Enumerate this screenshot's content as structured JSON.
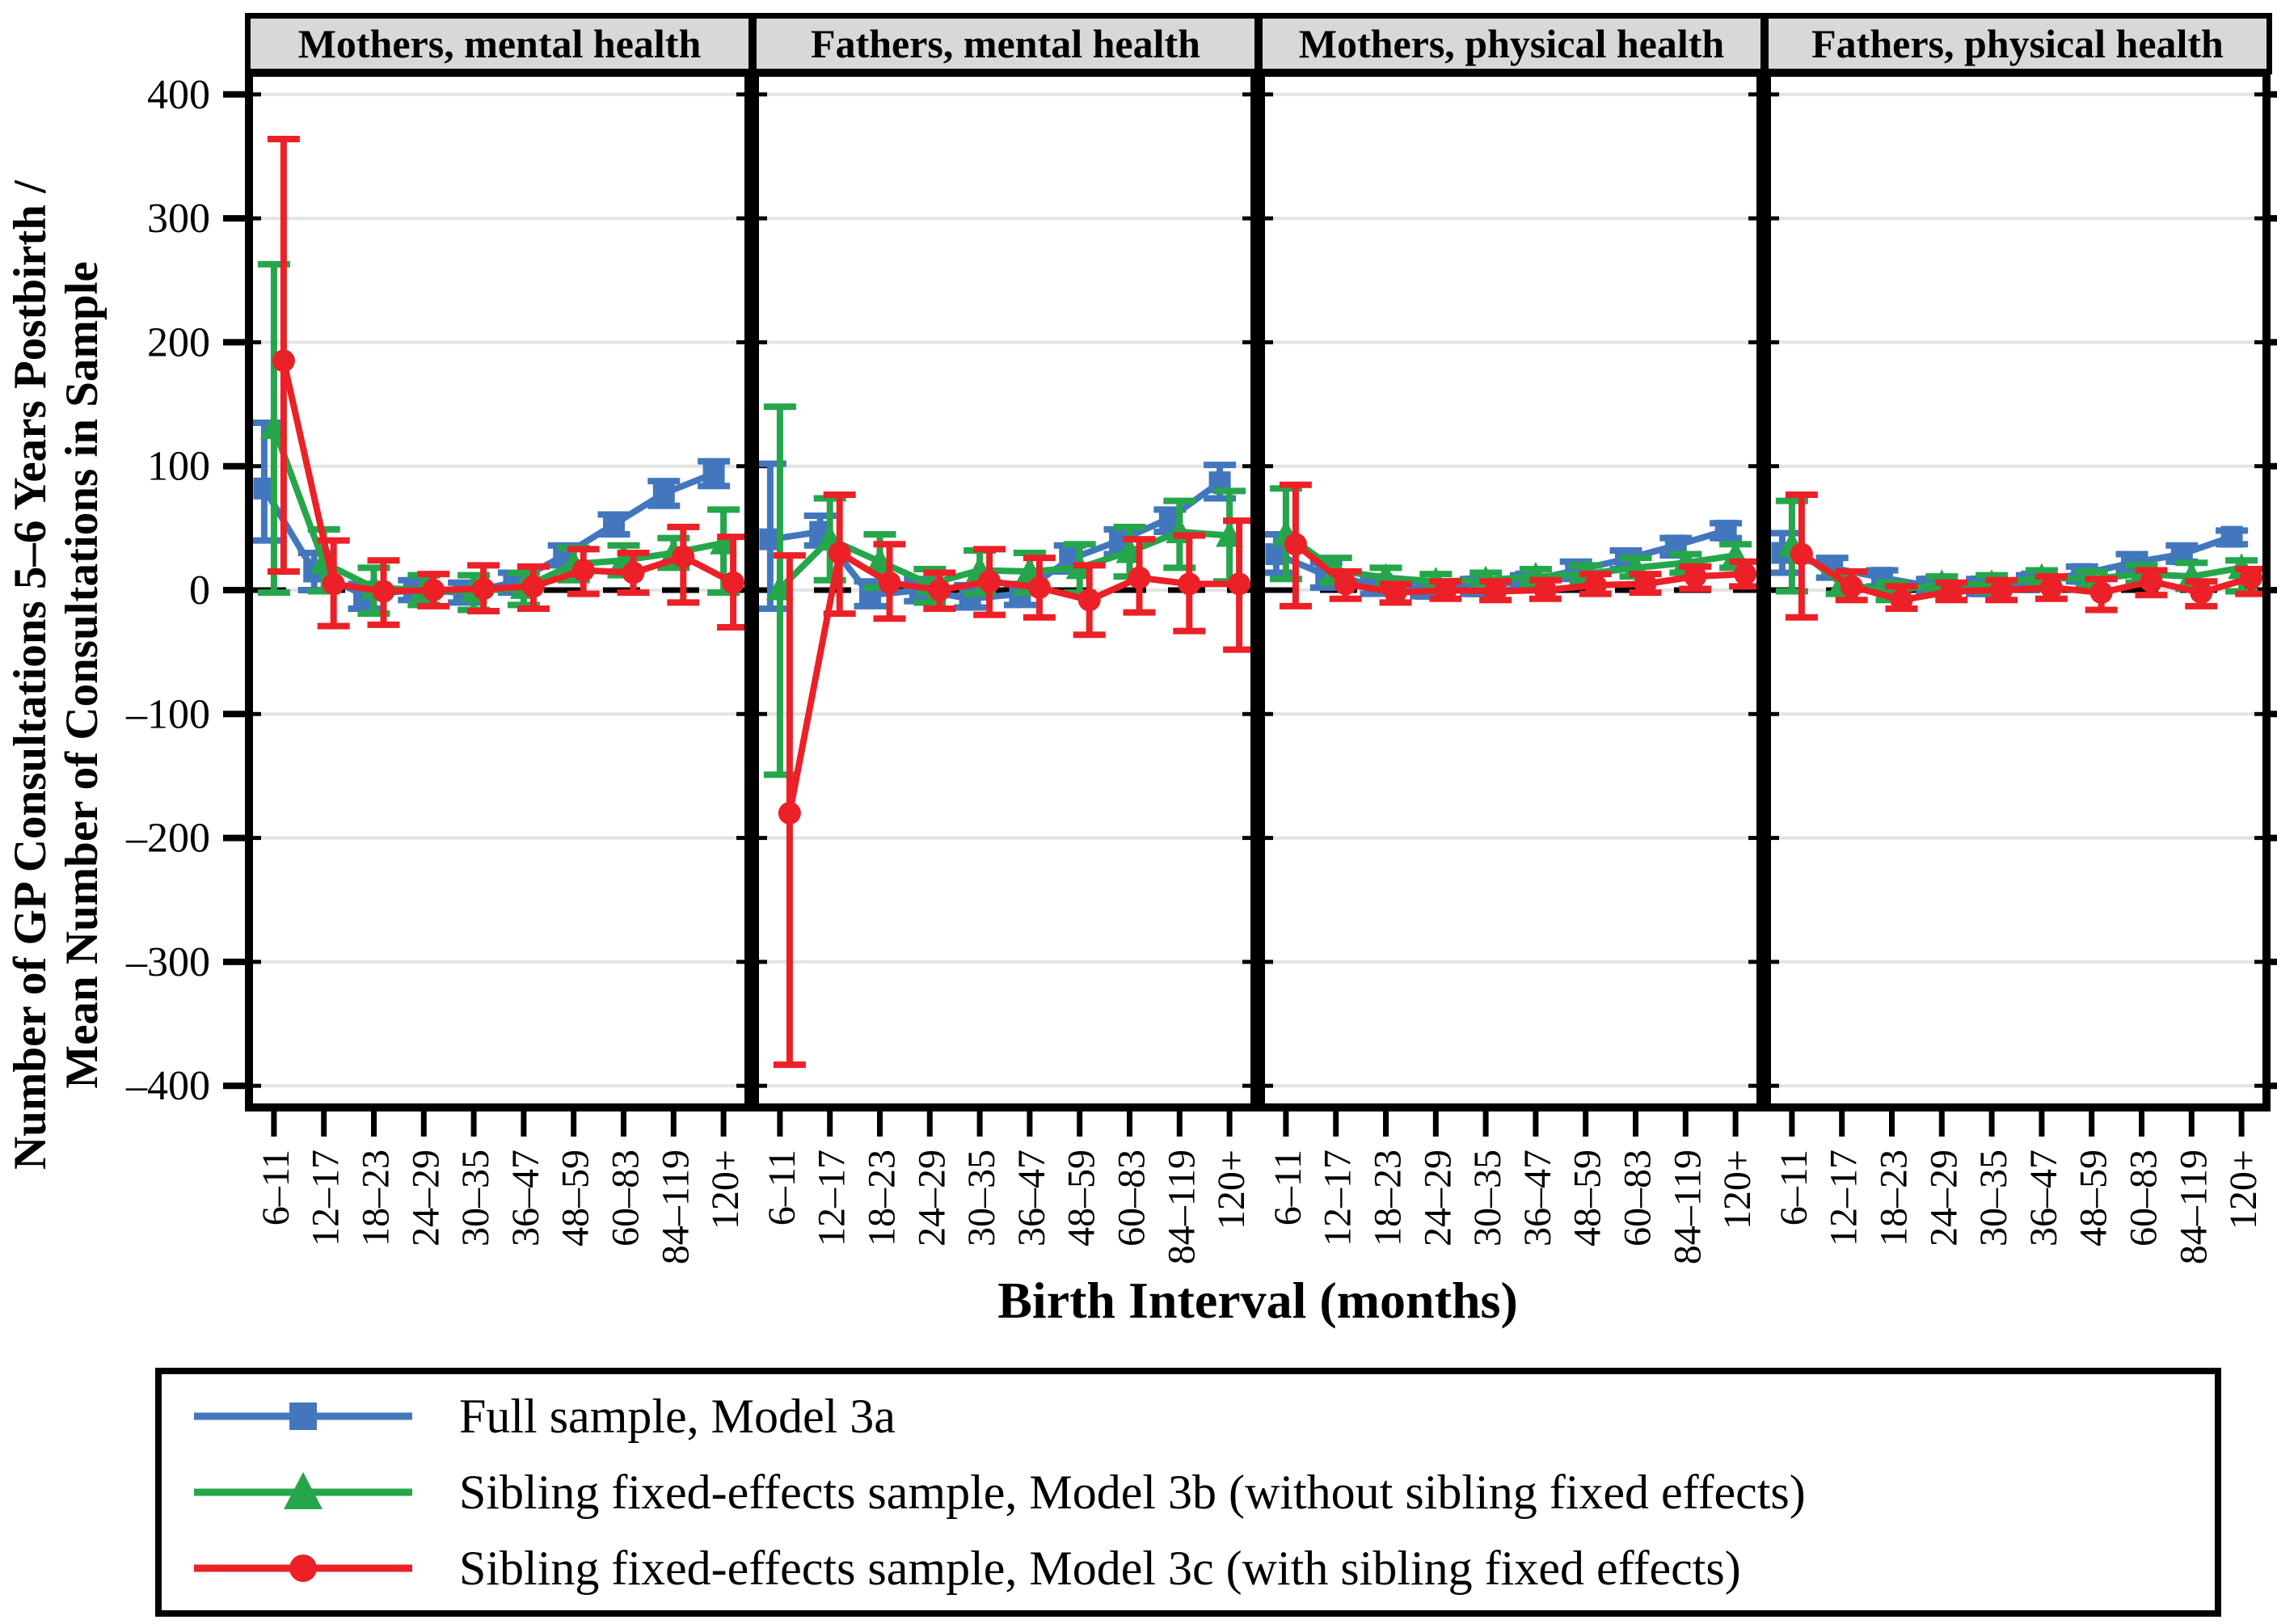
{
  "chart_data": {
    "type": "line",
    "title": "",
    "xlabel": "Birth Interval (months)",
    "ylabel_line1": "Number of GP Consultations 5–6 Years Postbirth /",
    "ylabel_line2": "Mean Number of Consultations in Sample",
    "legend_position": "bottom",
    "grid": "horizontal",
    "ylim": [
      -420,
      418
    ],
    "y_gridlines": [
      400,
      300,
      200,
      100,
      0,
      -100,
      -200,
      -300,
      -400
    ],
    "y_tick_labels": [
      "400",
      "300",
      "200",
      "100",
      "0",
      "–100",
      "–200",
      "–300",
      "–400"
    ],
    "categories": [
      "6–11",
      "12–17",
      "18–23",
      "24–29",
      "30–35",
      "36–47",
      "48–59",
      "60–83",
      "84–119",
      "120+"
    ],
    "series_meta": [
      {
        "key": "model3a",
        "label": "Full sample, Model 3a",
        "color": "#4277bd",
        "marker": "square"
      },
      {
        "key": "model3b",
        "label": "Sibling fixed-effects sample, Model 3b (without sibling fixed effects)",
        "color": "#26a64b",
        "marker": "triangle"
      },
      {
        "key": "model3c",
        "label": "Sibling fixed-effects sample, Model 3c (with sibling fixed effects)",
        "color": "#ec2027",
        "marker": "circle"
      }
    ],
    "point_format": "[estimate, ci_low, ci_high]",
    "panels": [
      {
        "id": "mothers-mental-health",
        "title": "Mothers, mental health",
        "series": [
          {
            "key": "model3a",
            "points": [
              [
                82,
                40,
                135
              ],
              [
                15,
                0,
                30
              ],
              [
                -4,
                -15,
                5
              ],
              [
                0,
                -8,
                8
              ],
              [
                -2,
                -10,
                6
              ],
              [
                6,
                -2,
                14
              ],
              [
                28,
                20,
                36
              ],
              [
                53,
                45,
                61
              ],
              [
                78,
                68,
                88
              ],
              [
                94,
                84,
                104
              ]
            ]
          },
          {
            "key": "model3b",
            "points": [
              [
                131,
                -2,
                263
              ],
              [
                22,
                -1,
                49
              ],
              [
                2,
                -19,
                18
              ],
              [
                0,
                -12,
                12
              ],
              [
                -1,
                -16,
                12
              ],
              [
                2,
                -12,
                14
              ],
              [
                21,
                8,
                34
              ],
              [
                24,
                12,
                36
              ],
              [
                30,
                18,
                42
              ],
              [
                38,
                -2,
                65
              ]
            ]
          },
          {
            "key": "model3c",
            "points": [
              [
                185,
                15,
                364
              ],
              [
                5,
                -29,
                40
              ],
              [
                -1,
                -28,
                24
              ],
              [
                0,
                -13,
                13
              ],
              [
                1,
                -17,
                20
              ],
              [
                3,
                -15,
                19
              ],
              [
                16,
                -3,
                33
              ],
              [
                14,
                -2,
                30
              ],
              [
                27,
                -10,
                51
              ],
              [
                6,
                -30,
                43
              ]
            ]
          }
        ]
      },
      {
        "id": "fathers-mental-health",
        "title": "Fathers, mental health",
        "series": [
          {
            "key": "model3a",
            "points": [
              [
                41,
                -15,
                102
              ],
              [
                47,
                36,
                60
              ],
              [
                -4,
                -13,
                7
              ],
              [
                0,
                -9,
                9
              ],
              [
                -7,
                -14,
                4
              ],
              [
                -3,
                -12,
                5
              ],
              [
                25,
                15,
                36
              ],
              [
                40,
                29,
                49
              ],
              [
                58,
                47,
                65
              ],
              [
                87,
                74,
                101
              ]
            ]
          },
          {
            "key": "model3b",
            "points": [
              [
                1,
                -149,
                148
              ],
              [
                41,
                8,
                74
              ],
              [
                23,
                2,
                45
              ],
              [
                5,
                -10,
                17
              ],
              [
                16,
                -3,
                32
              ],
              [
                15,
                -2,
                30
              ],
              [
                18,
                -2,
                37
              ],
              [
                31,
                11,
                51
              ],
              [
                47,
                18,
                72
              ],
              [
                44,
                7,
                80
              ]
            ]
          },
          {
            "key": "model3c",
            "points": [
              [
                -180,
                -383,
                28
              ],
              [
                30,
                -19,
                77
              ],
              [
                6,
                -23,
                37
              ],
              [
                0,
                -15,
                14
              ],
              [
                7,
                -20,
                33
              ],
              [
                2,
                -22,
                26
              ],
              [
                -8,
                -36,
                20
              ],
              [
                10,
                -18,
                41
              ],
              [
                5,
                -33,
                44
              ],
              [
                5,
                -48,
                56
              ]
            ]
          }
        ]
      },
      {
        "id": "mothers-physical-health",
        "title": "Mothers, physical health",
        "series": [
          {
            "key": "model3a",
            "points": [
              [
                29,
                14,
                45
              ],
              [
                12,
                2,
                22
              ],
              [
                4,
                -3,
                11
              ],
              [
                1,
                -5,
                7
              ],
              [
                3,
                -3,
                9
              ],
              [
                7,
                1,
                12
              ],
              [
                16,
                9,
                23
              ],
              [
                25,
                17,
                32
              ],
              [
                36,
                28,
                42
              ],
              [
                48,
                42,
                54
              ]
            ]
          },
          {
            "key": "model3b",
            "points": [
              [
                45,
                9,
                82
              ],
              [
                16,
                6,
                26
              ],
              [
                10,
                1,
                18
              ],
              [
                7,
                0,
                13
              ],
              [
                8,
                1,
                14
              ],
              [
                11,
                4,
                17
              ],
              [
                13,
                6,
                20
              ],
              [
                18,
                11,
                26
              ],
              [
                22,
                14,
                29
              ],
              [
                28,
                18,
                37
              ]
            ]
          },
          {
            "key": "model3c",
            "points": [
              [
                37,
                -13,
                85
              ],
              [
                5,
                -7,
                15
              ],
              [
                -2,
                -10,
                5
              ],
              [
                0,
                -7,
                7
              ],
              [
                -1,
                -8,
                7
              ],
              [
                0,
                -7,
                8
              ],
              [
                4,
                -3,
                13
              ],
              [
                5,
                -2,
                13
              ],
              [
                11,
                1,
                19
              ],
              [
                13,
                3,
                23
              ]
            ]
          }
        ]
      },
      {
        "id": "fathers-physical-health",
        "title": "Fathers, physical health",
        "series": [
          {
            "key": "model3a",
            "points": [
              [
                30,
                14,
                46
              ],
              [
                18,
                10,
                26
              ],
              [
                10,
                3,
                16
              ],
              [
                3,
                -2,
                9
              ],
              [
                3,
                -3,
                9
              ],
              [
                7,
                1,
                12
              ],
              [
                13,
                7,
                19
              ],
              [
                22,
                15,
                29
              ],
              [
                29,
                23,
                36
              ],
              [
                43,
                37,
                48
              ]
            ]
          },
          {
            "key": "model3b",
            "points": [
              [
                36,
                -1,
                72
              ],
              [
                5,
                -3,
                14
              ],
              [
                -1,
                -8,
                6
              ],
              [
                5,
                -1,
                11
              ],
              [
                5,
                -1,
                12
              ],
              [
                10,
                3,
                16
              ],
              [
                9,
                2,
                15
              ],
              [
                13,
                6,
                20
              ],
              [
                11,
                1,
                22
              ],
              [
                18,
                -1,
                24
              ]
            ]
          },
          {
            "key": "model3c",
            "points": [
              [
                29,
                -22,
                77
              ],
              [
                3,
                -8,
                15
              ],
              [
                -8,
                -15,
                3
              ],
              [
                -1,
                -8,
                6
              ],
              [
                0,
                -8,
                8
              ],
              [
                2,
                -7,
                11
              ],
              [
                -2,
                -16,
                9
              ],
              [
                7,
                -4,
                16
              ],
              [
                -2,
                -13,
                7
              ],
              [
                10,
                -3,
                17
              ]
            ]
          }
        ]
      }
    ],
    "colors": {
      "blue": "#4277bd",
      "green": "#26a64b",
      "red": "#ec2027",
      "gridline": "#e3e3e3",
      "header_bg": "#d8d8d8",
      "axis": "#000000"
    }
  }
}
